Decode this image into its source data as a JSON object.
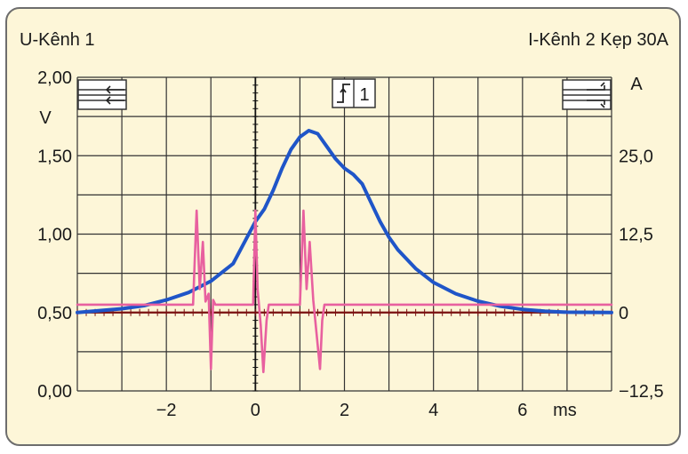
{
  "header": {
    "left_channel": "U-Kênh 1",
    "right_channel": "I-Kênh 2 Kẹp 30A"
  },
  "trigger": {
    "label": "1",
    "icon": "trigger-rising-edge-icon"
  },
  "colors": {
    "current": "#1f55c8",
    "voltage": "#e8609f",
    "grid": "#333333",
    "zero_line": "#7a1010",
    "background": "#fdf6d8"
  },
  "chart_data": {
    "type": "line",
    "grid": true,
    "xlabel": "ms",
    "ylabel_left": "V",
    "ylabel_right": "A",
    "xlim": [
      -4,
      8
    ],
    "ylim_left": [
      0.0,
      2.0
    ],
    "ylim_right": [
      -12.5,
      37.5
    ],
    "x_ticks": [
      {
        "value": -2,
        "label": "−2"
      },
      {
        "value": 0,
        "label": "0"
      },
      {
        "value": 2,
        "label": "2"
      },
      {
        "value": 4,
        "label": "4"
      },
      {
        "value": 6,
        "label": "6"
      }
    ],
    "y_ticks_left": [
      {
        "value": 0.0,
        "label": "0,00"
      },
      {
        "value": 0.5,
        "label": "0,50"
      },
      {
        "value": 1.0,
        "label": "1,00"
      },
      {
        "value": 1.5,
        "label": "1,50"
      },
      {
        "value": 2.0,
        "label": "2,00"
      }
    ],
    "y_ticks_right": [
      {
        "value": -12.5,
        "label": "−12,5"
      },
      {
        "value": 0,
        "label": "0"
      },
      {
        "value": 12.5,
        "label": "12,5"
      },
      {
        "value": 25.0,
        "label": "25,0"
      }
    ],
    "series": [
      {
        "axis": "right",
        "color": "#1f55c8",
        "points": [
          [
            -4.0,
            0.0
          ],
          [
            -3.5,
            0.3
          ],
          [
            -3.0,
            0.6
          ],
          [
            -2.5,
            1.1
          ],
          [
            -2.0,
            2.0
          ],
          [
            -1.5,
            3.2
          ],
          [
            -1.0,
            5.0
          ],
          [
            -0.5,
            7.8
          ],
          [
            0.0,
            14.5
          ],
          [
            0.2,
            16.5
          ],
          [
            0.4,
            19.5
          ],
          [
            0.6,
            23.0
          ],
          [
            0.8,
            26.0
          ],
          [
            1.0,
            28.0
          ],
          [
            1.2,
            29.0
          ],
          [
            1.4,
            28.5
          ],
          [
            1.6,
            26.5
          ],
          [
            1.8,
            24.5
          ],
          [
            2.0,
            23.0
          ],
          [
            2.2,
            22.0
          ],
          [
            2.4,
            20.5
          ],
          [
            2.6,
            17.5
          ],
          [
            2.8,
            14.5
          ],
          [
            3.0,
            12.0
          ],
          [
            3.2,
            10.0
          ],
          [
            3.6,
            7.0
          ],
          [
            4.0,
            4.8
          ],
          [
            4.5,
            3.0
          ],
          [
            5.0,
            1.8
          ],
          [
            5.5,
            1.0
          ],
          [
            6.0,
            0.5
          ],
          [
            6.5,
            0.2
          ],
          [
            7.0,
            0.05
          ],
          [
            8.0,
            0.0
          ]
        ]
      },
      {
        "axis": "left",
        "color": "#e8609f",
        "points": [
          [
            -4.0,
            0.55
          ],
          [
            -1.4,
            0.55
          ],
          [
            -1.32,
            1.15
          ],
          [
            -1.25,
            0.65
          ],
          [
            -1.18,
            0.95
          ],
          [
            -1.12,
            0.57
          ],
          [
            -1.05,
            0.62
          ],
          [
            -1.0,
            0.14
          ],
          [
            -0.95,
            0.58
          ],
          [
            -0.9,
            0.55
          ],
          [
            -0.05,
            0.55
          ],
          [
            0.0,
            1.15
          ],
          [
            0.05,
            0.65
          ],
          [
            0.12,
            0.42
          ],
          [
            0.18,
            0.12
          ],
          [
            0.25,
            0.45
          ],
          [
            0.3,
            0.55
          ],
          [
            1.0,
            0.55
          ],
          [
            1.08,
            1.15
          ],
          [
            1.15,
            0.65
          ],
          [
            1.22,
            0.95
          ],
          [
            1.3,
            0.58
          ],
          [
            1.38,
            0.35
          ],
          [
            1.45,
            0.14
          ],
          [
            1.5,
            0.45
          ],
          [
            1.55,
            0.55
          ],
          [
            8.0,
            0.55
          ]
        ]
      }
    ]
  }
}
